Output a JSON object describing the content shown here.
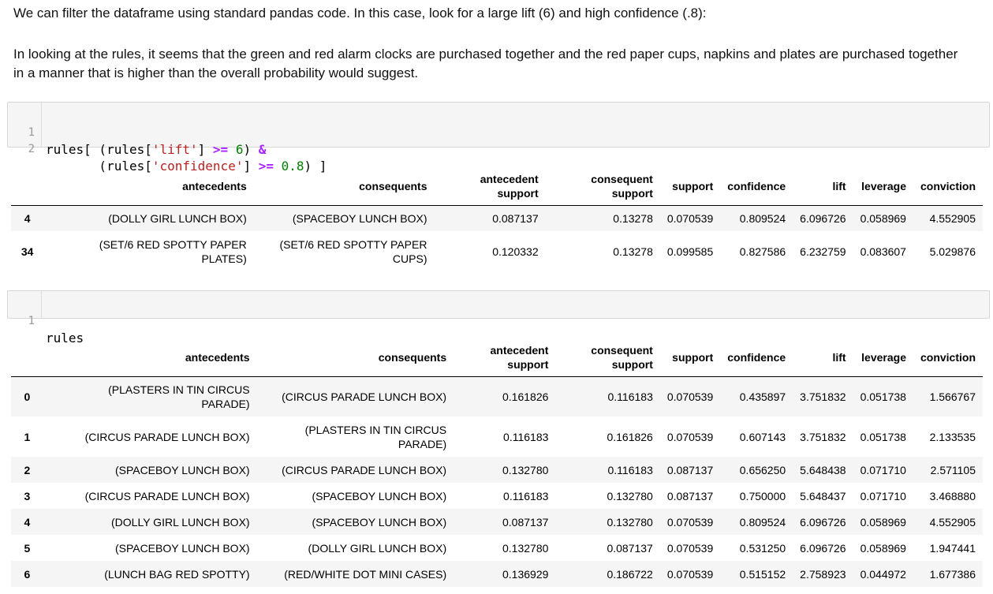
{
  "markdown": {
    "p1": "We can filter the dataframe using standard pandas code. In this case, look for a large lift (6) and high confidence (.8):",
    "p2": "In looking at the rules, it seems that the green and red alarm clocks are purchased together and the red paper cups, napkins and plates are purchased together in a manner that is higher than the overall probability would suggest."
  },
  "cell1": {
    "line_numbers": [
      "1",
      "2"
    ],
    "line1": {
      "a": "rules[ (rules[",
      "s1": "'lift'",
      "b": "] ",
      "op1": ">=",
      "c": " ",
      "n1": "6",
      "d": ") ",
      "op2": "&"
    },
    "line2": {
      "a": "       (rules[",
      "s1": "'confidence'",
      "b": "] ",
      "op1": ">=",
      "c": " ",
      "n1": "0.8",
      "d": ") ]"
    }
  },
  "cell2": {
    "line_numbers": [
      "1"
    ],
    "code": "rules"
  },
  "columns": [
    "",
    "antecedents",
    "consequents",
    "antecedent support",
    "consequent support",
    "support",
    "confidence",
    "lift",
    "leverage",
    "conviction"
  ],
  "column_lines": {
    "antecedent_support": [
      "antecedent",
      "support"
    ],
    "consequent_support": [
      "consequent",
      "support"
    ]
  },
  "table1": {
    "rows": [
      {
        "index": "4",
        "antecedents": [
          "(DOLLY GIRL LUNCH BOX)"
        ],
        "consequents": [
          "(SPACEBOY LUNCH BOX)"
        ],
        "antecedent_support": "0.087137",
        "consequent_support": "0.13278",
        "support": "0.070539",
        "confidence": "0.809524",
        "lift": "6.096726",
        "leverage": "0.058969",
        "conviction": "4.552905"
      },
      {
        "index": "34",
        "antecedents": [
          "(SET/6 RED SPOTTY PAPER",
          "PLATES)"
        ],
        "consequents": [
          "(SET/6 RED SPOTTY PAPER",
          "CUPS)"
        ],
        "antecedent_support": "0.120332",
        "consequent_support": "0.13278",
        "support": "0.099585",
        "confidence": "0.827586",
        "lift": "6.232759",
        "leverage": "0.083607",
        "conviction": "5.029876"
      }
    ]
  },
  "table2": {
    "rows": [
      {
        "index": "0",
        "antecedents": [
          "(PLASTERS IN TIN CIRCUS",
          "PARADE)"
        ],
        "consequents": [
          "(CIRCUS PARADE LUNCH BOX)"
        ],
        "antecedent_support": "0.161826",
        "consequent_support": "0.116183",
        "support": "0.070539",
        "confidence": "0.435897",
        "lift": "3.751832",
        "leverage": "0.051738",
        "conviction": "1.566767"
      },
      {
        "index": "1",
        "antecedents": [
          "(CIRCUS PARADE LUNCH BOX)"
        ],
        "consequents": [
          "(PLASTERS IN TIN CIRCUS",
          "PARADE)"
        ],
        "antecedent_support": "0.116183",
        "consequent_support": "0.161826",
        "support": "0.070539",
        "confidence": "0.607143",
        "lift": "3.751832",
        "leverage": "0.051738",
        "conviction": "2.133535"
      },
      {
        "index": "2",
        "antecedents": [
          "(SPACEBOY LUNCH BOX)"
        ],
        "consequents": [
          "(CIRCUS PARADE LUNCH BOX)"
        ],
        "antecedent_support": "0.132780",
        "consequent_support": "0.116183",
        "support": "0.087137",
        "confidence": "0.656250",
        "lift": "5.648438",
        "leverage": "0.071710",
        "conviction": "2.571105"
      },
      {
        "index": "3",
        "antecedents": [
          "(CIRCUS PARADE LUNCH BOX)"
        ],
        "consequents": [
          "(SPACEBOY LUNCH BOX)"
        ],
        "antecedent_support": "0.116183",
        "consequent_support": "0.132780",
        "support": "0.087137",
        "confidence": "0.750000",
        "lift": "5.648437",
        "leverage": "0.071710",
        "conviction": "3.468880"
      },
      {
        "index": "4",
        "antecedents": [
          "(DOLLY GIRL LUNCH BOX)"
        ],
        "consequents": [
          "(SPACEBOY LUNCH BOX)"
        ],
        "antecedent_support": "0.087137",
        "consequent_support": "0.132780",
        "support": "0.070539",
        "confidence": "0.809524",
        "lift": "6.096726",
        "leverage": "0.058969",
        "conviction": "4.552905"
      },
      {
        "index": "5",
        "antecedents": [
          "(SPACEBOY LUNCH BOX)"
        ],
        "consequents": [
          "(DOLLY GIRL LUNCH BOX)"
        ],
        "antecedent_support": "0.132780",
        "consequent_support": "0.087137",
        "support": "0.070539",
        "confidence": "0.531250",
        "lift": "6.096726",
        "leverage": "0.058969",
        "conviction": "1.947441"
      },
      {
        "index": "6",
        "antecedents": [
          "(LUNCH BAG RED SPOTTY)"
        ],
        "consequents": [
          "(RED/WHITE DOT MINI CASES)"
        ],
        "antecedent_support": "0.136929",
        "consequent_support": "0.186722",
        "support": "0.070539",
        "confidence": "0.515152",
        "lift": "2.758923",
        "leverage": "0.044972",
        "conviction": "1.677386"
      }
    ]
  }
}
